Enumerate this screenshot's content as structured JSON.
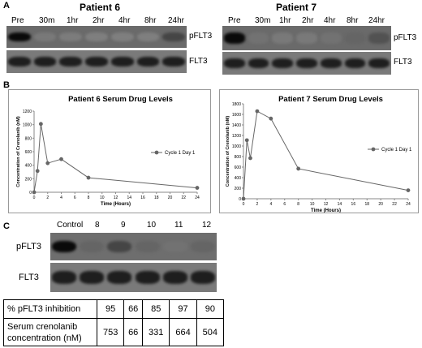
{
  "panel_a": {
    "letter": "A",
    "patients": [
      {
        "title": "Patient 6",
        "lanes": [
          "Pre",
          "30m",
          "1hr",
          "2hr",
          "4hr",
          "8hr",
          "24hr"
        ],
        "p_intensity": [
          1.0,
          0.15,
          0.12,
          0.1,
          0.1,
          0.1,
          0.55
        ],
        "rows": [
          "pFLT3",
          "FLT3"
        ]
      },
      {
        "title": "Patient 7",
        "lanes": [
          "Pre",
          "30m",
          "1hr",
          "2hr",
          "4hr",
          "8hr",
          "24hr"
        ],
        "p_intensity": [
          1.0,
          0.2,
          0.15,
          0.15,
          0.2,
          0.3,
          0.45
        ],
        "rows": [
          "pFLT3",
          "FLT3"
        ]
      }
    ]
  },
  "panel_b": {
    "letter": "B"
  },
  "chart_data": [
    {
      "type": "line",
      "title": "Patient 6 Serum Drug Levels",
      "xlabel": "Time (Hours)",
      "ylabel": "Concentration of Crenolanib (nM)",
      "xlim": [
        0,
        24
      ],
      "ylim": [
        0,
        1200
      ],
      "xticks": [
        0,
        2,
        4,
        6,
        8,
        10,
        12,
        14,
        16,
        18,
        20,
        22,
        24
      ],
      "yticks": [
        0,
        200,
        400,
        600,
        800,
        1000,
        1200
      ],
      "series": [
        {
          "name": "Cycle 1 Day 1",
          "x": [
            0,
            0.5,
            1,
            2,
            4,
            8,
            24
          ],
          "values": [
            0,
            315,
            1010,
            430,
            490,
            215,
            65
          ]
        }
      ],
      "legend": "right",
      "color": "#666666"
    },
    {
      "type": "line",
      "title": "Patient 7 Serum Drug Levels",
      "xlabel": "Time (Hours)",
      "ylabel": "Concentration of Crenolanib (nM)",
      "xlim": [
        0,
        24
      ],
      "ylim": [
        0,
        1800
      ],
      "xticks": [
        0,
        2,
        4,
        6,
        8,
        10,
        12,
        14,
        16,
        18,
        20,
        22,
        24
      ],
      "yticks": [
        0,
        200,
        400,
        600,
        800,
        1000,
        1200,
        1400,
        1600,
        1800
      ],
      "series": [
        {
          "name": "Cycle 1 Day 1",
          "x": [
            0,
            0.5,
            1,
            2,
            4,
            8,
            24
          ],
          "values": [
            0,
            1110,
            770,
            1660,
            1520,
            570,
            160
          ]
        }
      ],
      "legend": "right",
      "color": "#666666"
    }
  ],
  "panel_c": {
    "letter": "C",
    "lanes": [
      "Control",
      "8",
      "9",
      "10",
      "11",
      "12"
    ],
    "p_intensity": [
      1.0,
      0.3,
      0.55,
      0.3,
      0.2,
      0.3
    ],
    "rows": [
      "pFLT3",
      "FLT3"
    ],
    "table": {
      "row1_label": "% pFLT3 inhibition",
      "row1_values": [
        "95",
        "66",
        "85",
        "97",
        "90"
      ],
      "row2_label_a": "Serum crenolanib",
      "row2_label_b": "concentration (nM)",
      "row2_values": [
        "753",
        "66",
        "331",
        "664",
        "504"
      ]
    }
  }
}
